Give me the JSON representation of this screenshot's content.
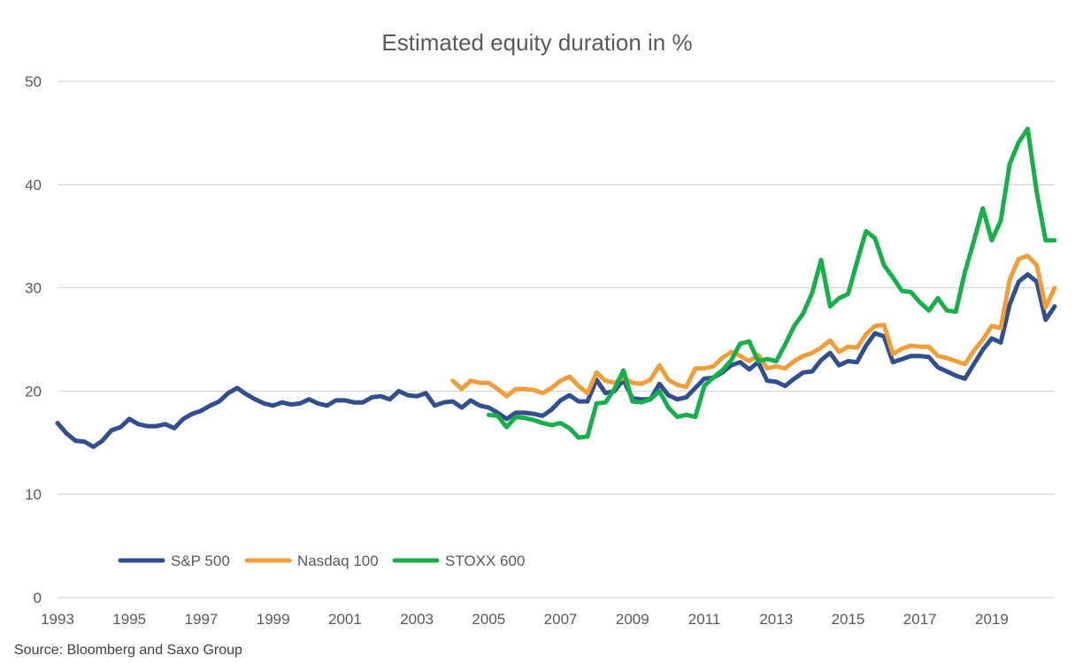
{
  "chart_data": {
    "type": "line",
    "title": "Estimated equity duration in %",
    "source": "Source: Bloomberg and Saxo Group",
    "xlabel": "",
    "ylabel": "",
    "ylim": [
      0,
      50
    ],
    "xlim": [
      1993,
      2020.75
    ],
    "y_ticks": [
      0,
      10,
      20,
      30,
      40,
      50
    ],
    "x_ticks": [
      "1993",
      "1995",
      "1997",
      "1999",
      "2001",
      "2003",
      "2005",
      "2007",
      "2009",
      "2011",
      "2013",
      "2015",
      "2017",
      "2019"
    ],
    "grid": true,
    "legend_position": "bottom-left",
    "series": [
      {
        "name": "S&P 500",
        "color": "#2f4f8f",
        "points": [
          [
            1993.0,
            16.9
          ],
          [
            1993.25,
            15.9
          ],
          [
            1993.5,
            15.2
          ],
          [
            1993.75,
            15.1
          ],
          [
            1994.0,
            14.6
          ],
          [
            1994.25,
            15.2
          ],
          [
            1994.5,
            16.2
          ],
          [
            1994.75,
            16.5
          ],
          [
            1995.0,
            17.3
          ],
          [
            1995.25,
            16.8
          ],
          [
            1995.5,
            16.6
          ],
          [
            1995.75,
            16.6
          ],
          [
            1996.0,
            16.8
          ],
          [
            1996.25,
            16.4
          ],
          [
            1996.5,
            17.3
          ],
          [
            1996.75,
            17.8
          ],
          [
            1997.0,
            18.1
          ],
          [
            1997.25,
            18.6
          ],
          [
            1997.5,
            19.0
          ],
          [
            1997.75,
            19.8
          ],
          [
            1998.0,
            20.3
          ],
          [
            1998.25,
            19.7
          ],
          [
            1998.5,
            19.2
          ],
          [
            1998.75,
            18.8
          ],
          [
            1999.0,
            18.6
          ],
          [
            1999.25,
            18.9
          ],
          [
            1999.5,
            18.7
          ],
          [
            1999.75,
            18.8
          ],
          [
            2000.0,
            19.2
          ],
          [
            2000.25,
            18.8
          ],
          [
            2000.5,
            18.6
          ],
          [
            2000.75,
            19.1
          ],
          [
            2001.0,
            19.1
          ],
          [
            2001.25,
            18.9
          ],
          [
            2001.5,
            18.9
          ],
          [
            2001.75,
            19.4
          ],
          [
            2002.0,
            19.5
          ],
          [
            2002.25,
            19.2
          ],
          [
            2002.5,
            20.0
          ],
          [
            2002.75,
            19.6
          ],
          [
            2003.0,
            19.5
          ],
          [
            2003.25,
            19.8
          ],
          [
            2003.5,
            18.6
          ],
          [
            2003.75,
            18.9
          ],
          [
            2004.0,
            19.0
          ],
          [
            2004.25,
            18.4
          ],
          [
            2004.5,
            19.1
          ],
          [
            2004.75,
            18.6
          ],
          [
            2005.0,
            18.4
          ],
          [
            2005.25,
            17.9
          ],
          [
            2005.5,
            17.3
          ],
          [
            2005.75,
            17.9
          ],
          [
            2006.0,
            17.9
          ],
          [
            2006.25,
            17.8
          ],
          [
            2006.5,
            17.6
          ],
          [
            2006.75,
            18.2
          ],
          [
            2007.0,
            19.1
          ],
          [
            2007.25,
            19.6
          ],
          [
            2007.5,
            19.0
          ],
          [
            2007.75,
            19.0
          ],
          [
            2008.0,
            21.1
          ],
          [
            2008.25,
            19.8
          ],
          [
            2008.5,
            20.0
          ],
          [
            2008.75,
            21.1
          ],
          [
            2009.0,
            19.3
          ],
          [
            2009.25,
            19.2
          ],
          [
            2009.5,
            19.2
          ],
          [
            2009.75,
            20.7
          ],
          [
            2010.0,
            19.6
          ],
          [
            2010.25,
            19.2
          ],
          [
            2010.5,
            19.4
          ],
          [
            2010.75,
            20.3
          ],
          [
            2011.0,
            21.2
          ],
          [
            2011.25,
            21.3
          ],
          [
            2011.5,
            21.8
          ],
          [
            2011.75,
            22.5
          ],
          [
            2012.0,
            22.8
          ],
          [
            2012.25,
            22.1
          ],
          [
            2012.5,
            22.8
          ],
          [
            2012.75,
            21.0
          ],
          [
            2013.0,
            20.9
          ],
          [
            2013.25,
            20.5
          ],
          [
            2013.5,
            21.2
          ],
          [
            2013.75,
            21.8
          ],
          [
            2014.0,
            21.9
          ],
          [
            2014.25,
            23.0
          ],
          [
            2014.5,
            23.7
          ],
          [
            2014.75,
            22.5
          ],
          [
            2015.0,
            22.9
          ],
          [
            2015.25,
            22.8
          ],
          [
            2015.5,
            24.4
          ],
          [
            2015.75,
            25.6
          ],
          [
            2016.0,
            25.3
          ],
          [
            2016.25,
            22.8
          ],
          [
            2016.5,
            23.1
          ],
          [
            2016.75,
            23.4
          ],
          [
            2017.0,
            23.4
          ],
          [
            2017.25,
            23.3
          ],
          [
            2017.5,
            22.3
          ],
          [
            2017.75,
            21.9
          ],
          [
            2018.0,
            21.5
          ],
          [
            2018.25,
            21.2
          ],
          [
            2018.5,
            22.6
          ],
          [
            2018.75,
            24.0
          ],
          [
            2019.0,
            25.1
          ],
          [
            2019.25,
            24.7
          ],
          [
            2019.5,
            28.4
          ],
          [
            2019.75,
            30.6
          ],
          [
            2020.0,
            31.3
          ],
          [
            2020.25,
            30.6
          ],
          [
            2020.5,
            26.9
          ],
          [
            2020.75,
            28.2
          ]
        ]
      },
      {
        "name": "Nasdaq 100",
        "color": "#f29e38",
        "points": [
          [
            2004.0,
            21.0
          ],
          [
            2004.25,
            20.2
          ],
          [
            2004.5,
            21.0
          ],
          [
            2004.75,
            20.8
          ],
          [
            2005.0,
            20.8
          ],
          [
            2005.25,
            20.2
          ],
          [
            2005.5,
            19.5
          ],
          [
            2005.75,
            20.2
          ],
          [
            2006.0,
            20.2
          ],
          [
            2006.25,
            20.1
          ],
          [
            2006.5,
            19.8
          ],
          [
            2006.75,
            20.3
          ],
          [
            2007.0,
            21.0
          ],
          [
            2007.25,
            21.4
          ],
          [
            2007.5,
            20.5
          ],
          [
            2007.75,
            19.8
          ],
          [
            2008.0,
            21.8
          ],
          [
            2008.25,
            21.0
          ],
          [
            2008.5,
            20.8
          ],
          [
            2008.75,
            21.3
          ],
          [
            2009.0,
            20.8
          ],
          [
            2009.25,
            20.7
          ],
          [
            2009.5,
            21.1
          ],
          [
            2009.75,
            22.5
          ],
          [
            2010.0,
            21.1
          ],
          [
            2010.25,
            20.6
          ],
          [
            2010.5,
            20.4
          ],
          [
            2010.75,
            22.2
          ],
          [
            2011.0,
            22.2
          ],
          [
            2011.25,
            22.4
          ],
          [
            2011.5,
            23.2
          ],
          [
            2011.75,
            23.8
          ],
          [
            2012.0,
            23.4
          ],
          [
            2012.25,
            22.9
          ],
          [
            2012.5,
            23.5
          ],
          [
            2012.75,
            22.2
          ],
          [
            2013.0,
            22.4
          ],
          [
            2013.25,
            22.2
          ],
          [
            2013.5,
            22.9
          ],
          [
            2013.75,
            23.4
          ],
          [
            2014.0,
            23.7
          ],
          [
            2014.25,
            24.2
          ],
          [
            2014.5,
            24.9
          ],
          [
            2014.75,
            23.8
          ],
          [
            2015.0,
            24.3
          ],
          [
            2015.25,
            24.2
          ],
          [
            2015.5,
            25.5
          ],
          [
            2015.75,
            26.3
          ],
          [
            2016.0,
            26.4
          ],
          [
            2016.25,
            23.6
          ],
          [
            2016.5,
            24.1
          ],
          [
            2016.75,
            24.4
          ],
          [
            2017.0,
            24.3
          ],
          [
            2017.25,
            24.3
          ],
          [
            2017.5,
            23.4
          ],
          [
            2017.75,
            23.2
          ],
          [
            2018.0,
            22.9
          ],
          [
            2018.25,
            22.6
          ],
          [
            2018.5,
            23.9
          ],
          [
            2018.75,
            25.0
          ],
          [
            2019.0,
            26.3
          ],
          [
            2019.25,
            26.1
          ],
          [
            2019.5,
            30.8
          ],
          [
            2019.75,
            32.8
          ],
          [
            2020.0,
            33.1
          ],
          [
            2020.25,
            32.2
          ],
          [
            2020.5,
            28.1
          ],
          [
            2020.75,
            30.0
          ]
        ]
      },
      {
        "name": "STOXX 600",
        "color": "#16b04a",
        "points": [
          [
            2005.0,
            17.7
          ],
          [
            2005.25,
            17.6
          ],
          [
            2005.5,
            16.5
          ],
          [
            2005.75,
            17.5
          ],
          [
            2006.0,
            17.4
          ],
          [
            2006.25,
            17.2
          ],
          [
            2006.5,
            16.9
          ],
          [
            2006.75,
            16.7
          ],
          [
            2007.0,
            16.9
          ],
          [
            2007.25,
            16.4
          ],
          [
            2007.5,
            15.5
          ],
          [
            2007.75,
            15.6
          ],
          [
            2008.0,
            18.8
          ],
          [
            2008.25,
            18.9
          ],
          [
            2008.5,
            20.2
          ],
          [
            2008.75,
            22.0
          ],
          [
            2009.0,
            19.0
          ],
          [
            2009.25,
            18.9
          ],
          [
            2009.5,
            19.2
          ],
          [
            2009.75,
            20.0
          ],
          [
            2010.0,
            18.4
          ],
          [
            2010.25,
            17.5
          ],
          [
            2010.5,
            17.7
          ],
          [
            2010.75,
            17.5
          ],
          [
            2011.0,
            20.5
          ],
          [
            2011.25,
            21.3
          ],
          [
            2011.5,
            22.0
          ],
          [
            2011.75,
            23.0
          ],
          [
            2012.0,
            24.6
          ],
          [
            2012.25,
            24.8
          ],
          [
            2012.5,
            22.9
          ],
          [
            2012.75,
            23.1
          ],
          [
            2013.0,
            22.9
          ],
          [
            2013.25,
            24.5
          ],
          [
            2013.5,
            26.3
          ],
          [
            2013.75,
            27.5
          ],
          [
            2014.0,
            29.5
          ],
          [
            2014.25,
            32.7
          ],
          [
            2014.5,
            28.2
          ],
          [
            2014.75,
            29.0
          ],
          [
            2015.0,
            29.4
          ],
          [
            2015.25,
            32.5
          ],
          [
            2015.5,
            35.5
          ],
          [
            2015.75,
            34.8
          ],
          [
            2016.0,
            32.2
          ],
          [
            2016.25,
            31.0
          ],
          [
            2016.5,
            29.7
          ],
          [
            2016.75,
            29.6
          ],
          [
            2017.0,
            28.6
          ],
          [
            2017.25,
            27.8
          ],
          [
            2017.5,
            29.0
          ],
          [
            2017.75,
            27.8
          ],
          [
            2018.0,
            27.7
          ],
          [
            2018.25,
            31.5
          ],
          [
            2018.5,
            34.5
          ],
          [
            2018.75,
            37.7
          ],
          [
            2019.0,
            34.6
          ],
          [
            2019.25,
            36.5
          ],
          [
            2019.5,
            42.0
          ],
          [
            2019.75,
            44.1
          ],
          [
            2020.0,
            45.4
          ],
          [
            2020.25,
            39.3
          ],
          [
            2020.5,
            34.6
          ],
          [
            2020.75,
            34.6
          ]
        ]
      }
    ]
  }
}
